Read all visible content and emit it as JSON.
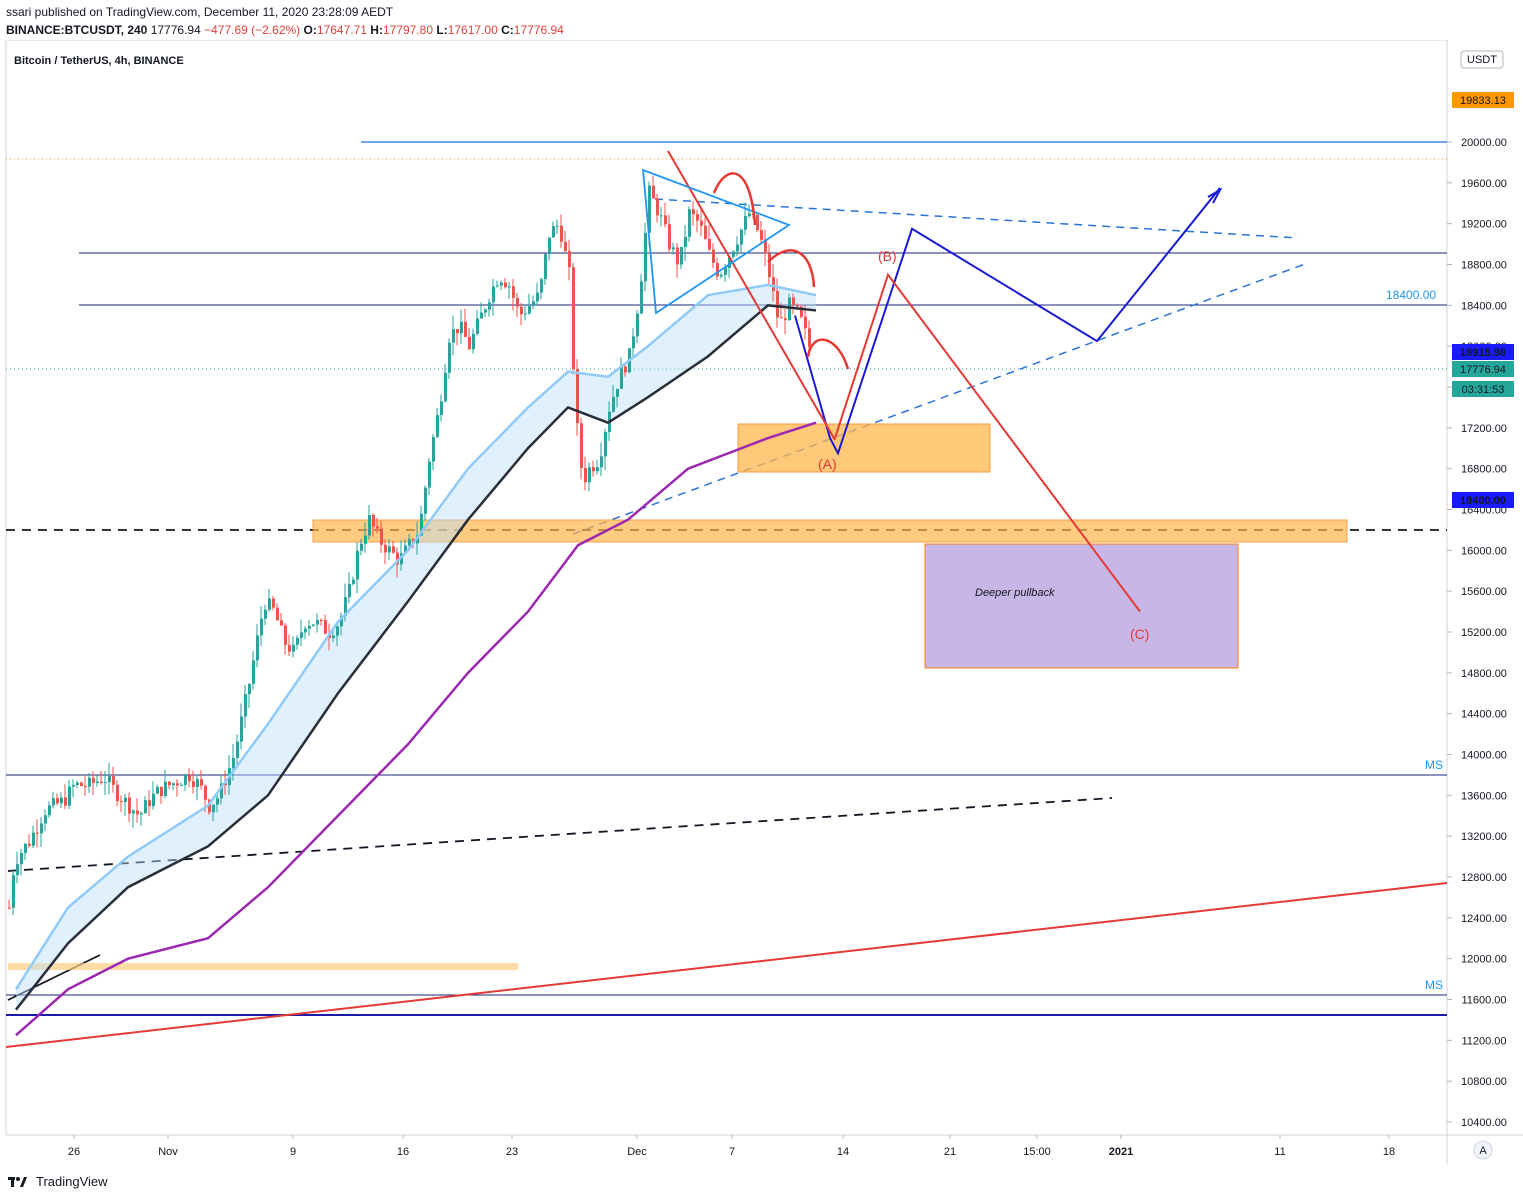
{
  "header": {
    "publish_line": "ssari published on TradingView.com, December 11, 2020 23:28:09 AEDT",
    "symbol": "BINANCE:BTCUSDT, 240",
    "last": "17776.94",
    "change": "−477.69 (−2.62%)",
    "o_label": "O:",
    "o_val": "17647.71",
    "h_label": "H:",
    "h_val": "17797.80",
    "l_label": "L:",
    "l_val": "17617.00",
    "c_label": "C:",
    "c_val": "17776.94"
  },
  "chart": {
    "title": "Bitcoin / TetherUS, 4h, BINANCE",
    "currency_button": "USDT",
    "auto_button": "A",
    "deeper_pullback_label": "Deeper pullback",
    "wave_labels": {
      "a": "(A)",
      "b": "(B)",
      "c": "(C)"
    },
    "level_label": "18400.00",
    "ms_label": "MS",
    "price_tags": {
      "top": "19833.13",
      "blue1": "18915.98",
      "last": "17776.94",
      "countdown": "03:31:53",
      "blue2": "18400.00"
    }
  },
  "footer": {
    "brand": "TradingView"
  },
  "chart_data": {
    "type": "candlestick",
    "title": "Bitcoin / TetherUS, 4h, BINANCE",
    "y_axis": {
      "range": [
        10220,
        20640
      ],
      "ticks": [
        "20000.00",
        "19600.00",
        "19200.00",
        "18800.00",
        "18400.00",
        "18000.00",
        "17600.00",
        "17200.00",
        "16800.00",
        "16400.00",
        "16000.00",
        "15600.00",
        "15200.00",
        "14800.00",
        "14400.00",
        "14000.00",
        "13600.00",
        "13200.00",
        "12800.00",
        "12400.00",
        "12000.00",
        "11600.00",
        "11200.00",
        "10800.00",
        "10400.00"
      ]
    },
    "x_axis": {
      "ticks": [
        "26",
        "Nov",
        "9",
        "16",
        "23",
        "Dec",
        "7",
        "14",
        "21",
        "15:00",
        "2021",
        "11",
        "18"
      ]
    },
    "horizontal_levels": [
      20000,
      18915.98,
      18400,
      17776.94,
      13800,
      11600,
      11400
    ],
    "ms_levels": [
      13800,
      11600
    ],
    "price_path_close": [
      [
        0,
        12500
      ],
      [
        5,
        12950
      ],
      [
        12,
        13050
      ],
      [
        20,
        13150
      ],
      [
        28,
        13300
      ],
      [
        35,
        13450
      ],
      [
        45,
        13500
      ],
      [
        55,
        13550
      ],
      [
        65,
        13700
      ],
      [
        80,
        13700
      ],
      [
        95,
        13780
      ],
      [
        105,
        13650
      ],
      [
        120,
        13500
      ],
      [
        130,
        13400
      ],
      [
        140,
        13550
      ],
      [
        150,
        13650
      ],
      [
        160,
        13700
      ],
      [
        170,
        13750
      ],
      [
        180,
        13800
      ],
      [
        190,
        13700
      ],
      [
        200,
        13500
      ],
      [
        210,
        13600
      ],
      [
        225,
        14000
      ],
      [
        240,
        14700
      ],
      [
        255,
        15500
      ],
      [
        265,
        15400
      ],
      [
        275,
        15100
      ],
      [
        285,
        15000
      ],
      [
        295,
        15300
      ],
      [
        305,
        15300
      ],
      [
        320,
        15200
      ],
      [
        330,
        15300
      ],
      [
        340,
        15600
      ],
      [
        350,
        16050
      ],
      [
        360,
        16300
      ],
      [
        370,
        16100
      ],
      [
        380,
        16000
      ],
      [
        390,
        15900
      ],
      [
        400,
        16050
      ],
      [
        410,
        16200
      ],
      [
        420,
        16900
      ],
      [
        430,
        17400
      ],
      [
        440,
        18100
      ],
      [
        450,
        18200
      ],
      [
        460,
        18000
      ],
      [
        470,
        18250
      ],
      [
        480,
        18500
      ],
      [
        490,
        18700
      ],
      [
        500,
        18600
      ],
      [
        510,
        18300
      ],
      [
        520,
        18400
      ],
      [
        530,
        18500
      ],
      [
        540,
        19100
      ],
      [
        550,
        19200
      ],
      [
        560,
        18700
      ],
      [
        565,
        17600
      ],
      [
        570,
        16900
      ],
      [
        575,
        16700
      ],
      [
        580,
        16800
      ],
      [
        590,
        16900
      ],
      [
        600,
        17400
      ],
      [
        610,
        17700
      ],
      [
        620,
        17900
      ],
      [
        630,
        18500
      ],
      [
        640,
        19500
      ],
      [
        650,
        19300
      ],
      [
        660,
        19000
      ],
      [
        670,
        18800
      ],
      [
        680,
        19300
      ],
      [
        690,
        19200
      ],
      [
        700,
        18900
      ],
      [
        710,
        18700
      ],
      [
        720,
        18900
      ],
      [
        730,
        19100
      ],
      [
        740,
        19300
      ],
      [
        750,
        19100
      ],
      [
        760,
        18700
      ],
      [
        770,
        18200
      ],
      [
        780,
        18400
      ],
      [
        790,
        18300
      ],
      [
        800,
        18000
      ],
      [
        808,
        17777
      ]
    ],
    "moving_averages": {
      "black": [
        [
          8,
          11500
        ],
        [
          60,
          12150
        ],
        [
          120,
          12700
        ],
        [
          200,
          13100
        ],
        [
          260,
          13600
        ],
        [
          330,
          14600
        ],
        [
          400,
          15500
        ],
        [
          460,
          16300
        ],
        [
          520,
          17000
        ],
        [
          560,
          17400
        ],
        [
          600,
          17250
        ],
        [
          640,
          17500
        ],
        [
          700,
          17900
        ],
        [
          760,
          18400
        ],
        [
          808,
          18350
        ]
      ],
      "purple": [
        [
          8,
          11250
        ],
        [
          60,
          11700
        ],
        [
          120,
          12000
        ],
        [
          200,
          12200
        ],
        [
          260,
          12700
        ],
        [
          330,
          13400
        ],
        [
          400,
          14100
        ],
        [
          460,
          14800
        ],
        [
          520,
          15400
        ],
        [
          570,
          16050
        ],
        [
          620,
          16300
        ],
        [
          680,
          16800
        ],
        [
          760,
          17100
        ],
        [
          808,
          17250
        ]
      ],
      "light_blue": [
        [
          8,
          11700
        ],
        [
          60,
          12500
        ],
        [
          120,
          13000
        ],
        [
          200,
          13500
        ],
        [
          260,
          14300
        ],
        [
          330,
          15300
        ],
        [
          400,
          16000
        ],
        [
          460,
          16800
        ],
        [
          520,
          17400
        ],
        [
          560,
          17750
        ],
        [
          600,
          17700
        ],
        [
          640,
          18000
        ],
        [
          700,
          18500
        ],
        [
          760,
          18600
        ],
        [
          808,
          18500
        ]
      ]
    },
    "projections": {
      "blue_path": [
        [
          795,
          18300
        ],
        [
          830,
          17100
        ],
        [
          838,
          16950
        ],
        [
          912,
          19150
        ],
        [
          1097,
          18050
        ],
        [
          1220,
          19550
        ]
      ],
      "red_path": [
        [
          835,
          17100
        ],
        [
          888,
          18700
        ],
        [
          1140,
          15400
        ]
      ]
    },
    "zones": [
      {
        "name": "upper",
        "from": 16850,
        "to": 17200
      },
      {
        "name": "mid",
        "from": 16100,
        "to": 16300
      },
      {
        "name": "deeper",
        "from": 14850,
        "to": 16050
      }
    ]
  }
}
